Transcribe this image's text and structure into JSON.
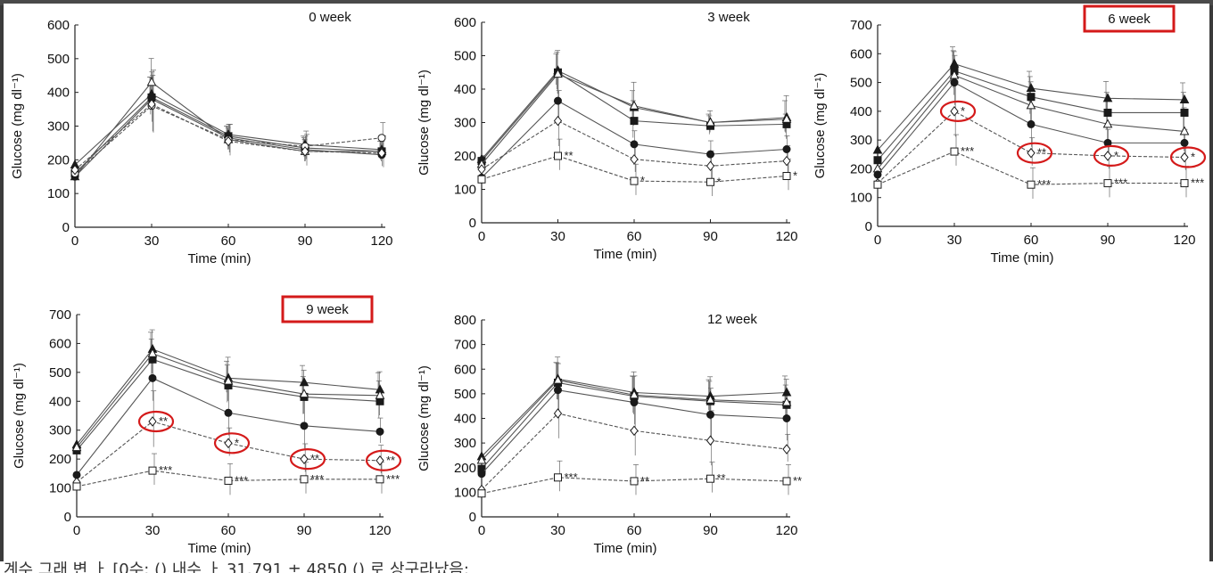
{
  "bottom_caption": "계수 그래 변 ㅏ [0수: () 내수 ㅏ 31.791 ± 4850 () 로 상구라났음:",
  "chart_data": [
    {
      "type": "line",
      "title": "0 week",
      "highlighted_title": false,
      "xlabel": "Time (min)",
      "ylabel": "Glucose (mg dl⁻¹)",
      "x": [
        0,
        30,
        60,
        90,
        120
      ],
      "xticks": [
        "0",
        "30",
        "60",
        "90",
        "120"
      ],
      "ylim": [
        0,
        600
      ],
      "yticks": [
        "0",
        "100",
        "200",
        "300",
        "400",
        "500",
        "600"
      ],
      "series": [
        {
          "name": "filled-triangle",
          "marker": "triangle-filled",
          "values": [
            185,
            395,
            275,
            245,
            230
          ]
        },
        {
          "name": "filled-square",
          "marker": "square-filled",
          "values": [
            160,
            385,
            270,
            235,
            225
          ]
        },
        {
          "name": "open-triangle",
          "marker": "triangle-open",
          "values": [
            150,
            430,
            260,
            225,
            225
          ]
        },
        {
          "name": "filled-circle",
          "marker": "circle-filled",
          "values": [
            150,
            380,
            265,
            230,
            215
          ]
        },
        {
          "name": "open-circle",
          "marker": "circle-open",
          "values": [
            160,
            360,
            260,
            240,
            265
          ]
        },
        {
          "name": "open-diamond",
          "marker": "diamond-open",
          "values": [
            170,
            365,
            255,
            225,
            220
          ]
        }
      ],
      "annotations": [],
      "circled": []
    },
    {
      "type": "line",
      "title": "3 week",
      "highlighted_title": false,
      "xlabel": "Time (min)",
      "ylabel": "Glucose (mg dl⁻¹)",
      "x": [
        0,
        30,
        60,
        90,
        120
      ],
      "xticks": [
        "0",
        "30",
        "60",
        "90",
        "120"
      ],
      "ylim": [
        0,
        600
      ],
      "yticks": [
        "0",
        "100",
        "200",
        "300",
        "400",
        "500",
        "600"
      ],
      "series": [
        {
          "name": "filled-triangle",
          "marker": "triangle-filled",
          "values": [
            190,
            455,
            345,
            300,
            315
          ]
        },
        {
          "name": "filled-square",
          "marker": "square-filled",
          "values": [
            185,
            450,
            305,
            290,
            295
          ]
        },
        {
          "name": "open-triangle",
          "marker": "triangle-open",
          "values": [
            175,
            445,
            350,
            300,
            310
          ]
        },
        {
          "name": "filled-circle",
          "marker": "circle-filled",
          "values": [
            135,
            365,
            235,
            205,
            220
          ]
        },
        {
          "name": "open-diamond",
          "marker": "diamond-open",
          "values": [
            160,
            305,
            190,
            170,
            185
          ]
        },
        {
          "name": "open-square",
          "marker": "square-open",
          "values": [
            130,
            200,
            125,
            122,
            140
          ]
        }
      ],
      "annotations": [
        {
          "series": "open-square",
          "index": 1,
          "text": "**"
        },
        {
          "series": "open-square",
          "index": 2,
          "text": "*"
        },
        {
          "series": "open-square",
          "index": 3,
          "text": "*"
        },
        {
          "series": "open-square",
          "index": 4,
          "text": "*"
        }
      ],
      "circled": []
    },
    {
      "type": "line",
      "title": "6 week",
      "highlighted_title": true,
      "xlabel": "Time (min)",
      "ylabel": "Glucose (mg dl⁻¹)",
      "x": [
        0,
        30,
        60,
        90,
        120
      ],
      "xticks": [
        "0",
        "30",
        "60",
        "90",
        "120"
      ],
      "ylim": [
        0,
        700
      ],
      "yticks": [
        "0",
        "100",
        "200",
        "300",
        "400",
        "500",
        "600",
        "700"
      ],
      "series": [
        {
          "name": "filled-triangle",
          "marker": "triangle-filled",
          "values": [
            265,
            565,
            480,
            445,
            440
          ]
        },
        {
          "name": "filled-square",
          "marker": "square-filled",
          "values": [
            230,
            540,
            450,
            395,
            395
          ]
        },
        {
          "name": "open-triangle",
          "marker": "triangle-open",
          "values": [
            200,
            525,
            420,
            355,
            330
          ]
        },
        {
          "name": "filled-circle",
          "marker": "circle-filled",
          "values": [
            180,
            500,
            355,
            290,
            290
          ]
        },
        {
          "name": "open-diamond",
          "marker": "diamond-open",
          "values": [
            150,
            400,
            255,
            245,
            240
          ]
        },
        {
          "name": "open-square",
          "marker": "square-open",
          "values": [
            145,
            260,
            145,
            150,
            150
          ]
        }
      ],
      "annotations": [
        {
          "series": "open-diamond",
          "index": 1,
          "text": "*"
        },
        {
          "series": "open-diamond",
          "index": 2,
          "text": "**"
        },
        {
          "series": "open-diamond",
          "index": 3,
          "text": "*"
        },
        {
          "series": "open-diamond",
          "index": 4,
          "text": "*"
        },
        {
          "series": "open-square",
          "index": 1,
          "text": "***"
        },
        {
          "series": "open-square",
          "index": 2,
          "text": "***"
        },
        {
          "series": "open-square",
          "index": 3,
          "text": "***"
        },
        {
          "series": "open-square",
          "index": 4,
          "text": "***"
        }
      ],
      "circled": [
        {
          "series": "open-diamond",
          "indices": [
            1,
            2,
            3,
            4
          ]
        }
      ]
    },
    {
      "type": "line",
      "title": "9 week",
      "highlighted_title": true,
      "xlabel": "Time (min)",
      "ylabel": "Glucose (mg dl⁻¹)",
      "x": [
        0,
        30,
        60,
        90,
        120
      ],
      "xticks": [
        "0",
        "30",
        "60",
        "90",
        "120"
      ],
      "ylim": [
        0,
        700
      ],
      "yticks": [
        "0",
        "100",
        "200",
        "300",
        "400",
        "500",
        "600",
        "700"
      ],
      "series": [
        {
          "name": "filled-triangle",
          "marker": "triangle-filled",
          "values": [
            250,
            580,
            480,
            465,
            440
          ]
        },
        {
          "name": "filled-square",
          "marker": "square-filled",
          "values": [
            230,
            545,
            455,
            415,
            400
          ]
        },
        {
          "name": "open-triangle",
          "marker": "triangle-open",
          "values": [
            240,
            565,
            470,
            425,
            420
          ]
        },
        {
          "name": "filled-circle",
          "marker": "circle-filled",
          "values": [
            145,
            480,
            360,
            315,
            295
          ]
        },
        {
          "name": "open-diamond",
          "marker": "diamond-open",
          "values": [
            120,
            330,
            255,
            200,
            195
          ]
        },
        {
          "name": "open-square",
          "marker": "square-open",
          "values": [
            105,
            160,
            125,
            130,
            130
          ]
        }
      ],
      "annotations": [
        {
          "series": "open-diamond",
          "index": 1,
          "text": "**"
        },
        {
          "series": "open-diamond",
          "index": 2,
          "text": "*"
        },
        {
          "series": "open-diamond",
          "index": 3,
          "text": "**"
        },
        {
          "series": "open-diamond",
          "index": 4,
          "text": "**"
        },
        {
          "series": "open-square",
          "index": 1,
          "text": "***"
        },
        {
          "series": "open-square",
          "index": 2,
          "text": "***"
        },
        {
          "series": "open-square",
          "index": 3,
          "text": "***"
        },
        {
          "series": "open-square",
          "index": 4,
          "text": "***"
        }
      ],
      "circled": [
        {
          "series": "open-diamond",
          "indices": [
            1,
            2,
            3,
            4
          ]
        }
      ]
    },
    {
      "type": "line",
      "title": "12 week",
      "highlighted_title": false,
      "xlabel": "Time (min)",
      "ylabel": "Glucose (mg dl⁻¹)",
      "x": [
        0,
        30,
        60,
        90,
        120
      ],
      "xticks": [
        "0",
        "30",
        "60",
        "90",
        "120"
      ],
      "ylim": [
        0,
        800
      ],
      "yticks": [
        "0",
        "100",
        "200",
        "300",
        "400",
        "500",
        "600",
        "700",
        "800"
      ],
      "series": [
        {
          "name": "filled-triangle",
          "marker": "triangle-filled",
          "values": [
            245,
            560,
            505,
            490,
            505
          ]
        },
        {
          "name": "filled-square",
          "marker": "square-filled",
          "values": [
            195,
            545,
            490,
            470,
            455
          ]
        },
        {
          "name": "open-triangle",
          "marker": "triangle-open",
          "values": [
            230,
            555,
            495,
            475,
            465
          ]
        },
        {
          "name": "filled-circle",
          "marker": "circle-filled",
          "values": [
            175,
            515,
            465,
            415,
            400
          ]
        },
        {
          "name": "open-diamond",
          "marker": "diamond-open",
          "values": [
            110,
            420,
            350,
            310,
            275
          ]
        },
        {
          "name": "open-square",
          "marker": "square-open",
          "values": [
            95,
            160,
            145,
            155,
            145
          ]
        }
      ],
      "annotations": [
        {
          "series": "open-square",
          "index": 1,
          "text": "***"
        },
        {
          "series": "open-square",
          "index": 2,
          "text": "**"
        },
        {
          "series": "open-square",
          "index": 3,
          "text": "**"
        },
        {
          "series": "open-square",
          "index": 4,
          "text": "**"
        }
      ],
      "circled": []
    }
  ]
}
